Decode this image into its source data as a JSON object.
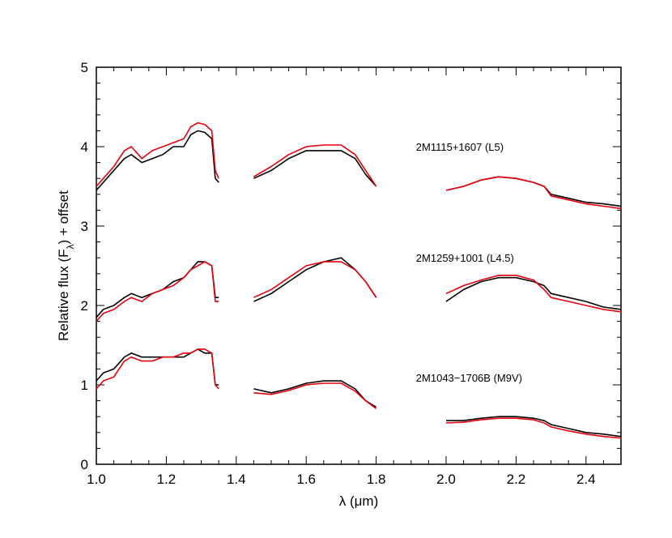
{
  "chart_data": {
    "type": "line",
    "title": "",
    "xlabel": "λ (μm)",
    "ylabel": "Relative flux (Fλ) + offset",
    "ylabel_main": "Relative flux (F",
    "ylabel_sub": "λ",
    "ylabel_tail": ") + offset",
    "xlim": [
      1.0,
      2.5
    ],
    "ylim": [
      0,
      5
    ],
    "x_ticks": [
      1.0,
      1.2,
      1.4,
      1.6,
      1.8,
      2.0,
      2.2,
      2.4
    ],
    "x_tick_labels": [
      "1.0",
      "1.2",
      "1.4",
      "1.6",
      "1.8",
      "2.0",
      "2.2",
      "2.4"
    ],
    "y_ticks": [
      0,
      1,
      2,
      3,
      4,
      5
    ],
    "y_tick_labels": [
      "0",
      "1",
      "2",
      "3",
      "4",
      "5"
    ],
    "grid": false,
    "colors": {
      "observed": "#000000",
      "model": "#e8000b"
    },
    "annotations": [
      {
        "text": "2M1115+1607 (L5)",
        "x": 1.9,
        "y": 3.95
      },
      {
        "text": "2M1259+1001 (L4.5)",
        "x": 1.9,
        "y": 2.55
      },
      {
        "text": "2M1043−1706B (M9V)",
        "x": 1.9,
        "y": 1.04
      }
    ],
    "series": [
      {
        "name": "2M1115+1607 (L5)",
        "segments": [
          {
            "x": [
              1.0,
              1.02,
              1.05,
              1.08,
              1.1,
              1.13,
              1.16,
              1.19,
              1.22,
              1.25,
              1.27,
              1.29,
              1.31,
              1.33,
              1.34,
              1.35
            ],
            "observed": [
              3.45,
              3.55,
              3.7,
              3.85,
              3.9,
              3.8,
              3.85,
              3.9,
              4.0,
              4.0,
              4.15,
              4.2,
              4.18,
              4.1,
              3.6,
              3.55
            ],
            "model": [
              3.5,
              3.6,
              3.75,
              3.95,
              4.0,
              3.85,
              3.95,
              4.0,
              4.05,
              4.1,
              4.25,
              4.3,
              4.28,
              4.2,
              3.7,
              3.6
            ]
          },
          {
            "x": [
              1.45,
              1.5,
              1.55,
              1.6,
              1.65,
              1.7,
              1.74,
              1.77,
              1.8
            ],
            "observed": [
              3.6,
              3.7,
              3.85,
              3.95,
              3.95,
              3.95,
              3.85,
              3.65,
              3.5
            ],
            "model": [
              3.62,
              3.75,
              3.9,
              4.0,
              4.02,
              4.02,
              3.9,
              3.7,
              3.5
            ]
          },
          {
            "x": [
              2.0,
              2.05,
              2.1,
              2.15,
              2.2,
              2.25,
              2.28,
              2.3,
              2.35,
              2.4,
              2.45,
              2.5
            ],
            "observed": [
              3.45,
              3.5,
              3.58,
              3.62,
              3.6,
              3.55,
              3.5,
              3.4,
              3.35,
              3.3,
              3.28,
              3.25
            ],
            "model": [
              3.45,
              3.5,
              3.58,
              3.62,
              3.6,
              3.55,
              3.5,
              3.38,
              3.33,
              3.28,
              3.25,
              3.22
            ]
          }
        ]
      },
      {
        "name": "2M1259+1001 (L4.5)",
        "segments": [
          {
            "x": [
              1.0,
              1.02,
              1.05,
              1.08,
              1.1,
              1.13,
              1.16,
              1.19,
              1.22,
              1.25,
              1.27,
              1.29,
              1.31,
              1.33,
              1.34,
              1.35
            ],
            "observed": [
              1.85,
              1.95,
              2.0,
              2.1,
              2.15,
              2.1,
              2.15,
              2.2,
              2.3,
              2.35,
              2.45,
              2.55,
              2.55,
              2.5,
              2.1,
              2.1
            ],
            "model": [
              1.8,
              1.9,
              1.95,
              2.05,
              2.1,
              2.05,
              2.15,
              2.2,
              2.25,
              2.35,
              2.45,
              2.5,
              2.55,
              2.5,
              2.05,
              2.05
            ]
          },
          {
            "x": [
              1.45,
              1.5,
              1.55,
              1.6,
              1.65,
              1.7,
              1.74,
              1.77,
              1.8
            ],
            "observed": [
              2.05,
              2.15,
              2.3,
              2.45,
              2.55,
              2.6,
              2.45,
              2.3,
              2.1
            ],
            "model": [
              2.1,
              2.2,
              2.35,
              2.5,
              2.55,
              2.55,
              2.45,
              2.3,
              2.1
            ]
          },
          {
            "x": [
              2.0,
              2.05,
              2.1,
              2.15,
              2.2,
              2.25,
              2.28,
              2.3,
              2.35,
              2.4,
              2.45,
              2.5
            ],
            "observed": [
              2.05,
              2.2,
              2.3,
              2.35,
              2.35,
              2.3,
              2.25,
              2.15,
              2.1,
              2.05,
              1.98,
              1.95
            ],
            "model": [
              2.15,
              2.25,
              2.32,
              2.38,
              2.38,
              2.32,
              2.2,
              2.1,
              2.05,
              2.0,
              1.95,
              1.92
            ]
          }
        ]
      },
      {
        "name": "2M1043−1706B (M9V)",
        "segments": [
          {
            "x": [
              1.0,
              1.02,
              1.05,
              1.08,
              1.1,
              1.13,
              1.16,
              1.19,
              1.22,
              1.25,
              1.27,
              1.29,
              1.31,
              1.33,
              1.34,
              1.35
            ],
            "observed": [
              1.05,
              1.15,
              1.2,
              1.35,
              1.4,
              1.35,
              1.35,
              1.35,
              1.35,
              1.35,
              1.4,
              1.45,
              1.4,
              1.4,
              1.0,
              1.0
            ],
            "model": [
              0.95,
              1.05,
              1.1,
              1.3,
              1.35,
              1.3,
              1.3,
              1.35,
              1.35,
              1.4,
              1.4,
              1.45,
              1.45,
              1.4,
              1.0,
              0.95
            ]
          },
          {
            "x": [
              1.45,
              1.5,
              1.55,
              1.6,
              1.65,
              1.7,
              1.74,
              1.77,
              1.8
            ],
            "observed": [
              0.95,
              0.9,
              0.95,
              1.02,
              1.05,
              1.05,
              0.95,
              0.8,
              0.72
            ],
            "model": [
              0.9,
              0.88,
              0.93,
              1.0,
              1.02,
              1.02,
              0.92,
              0.8,
              0.7
            ]
          },
          {
            "x": [
              2.0,
              2.05,
              2.1,
              2.15,
              2.2,
              2.25,
              2.28,
              2.3,
              2.35,
              2.4,
              2.45,
              2.5
            ],
            "observed": [
              0.55,
              0.55,
              0.58,
              0.6,
              0.6,
              0.58,
              0.55,
              0.5,
              0.45,
              0.4,
              0.38,
              0.35
            ],
            "model": [
              0.52,
              0.53,
              0.56,
              0.58,
              0.58,
              0.56,
              0.52,
              0.47,
              0.42,
              0.38,
              0.35,
              0.33
            ]
          }
        ]
      }
    ]
  }
}
